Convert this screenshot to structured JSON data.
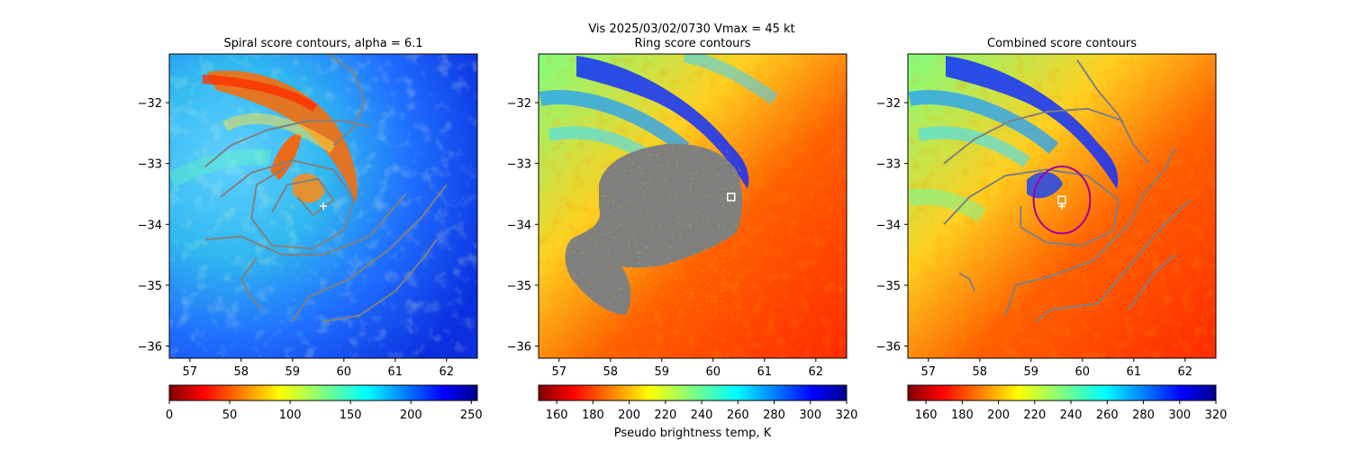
{
  "figure": {
    "suptitle": "Vis  2025/03/02/0730    Vmax = 45 kt",
    "colorbar_label": "Pseudo brightness temp, K"
  },
  "chart_data": [
    {
      "type": "heatmap",
      "title": "Spiral score contours, alpha =  6.1",
      "xlim": [
        56.6,
        62.6
      ],
      "ylim": [
        -36.2,
        -31.2
      ],
      "x_ticks": [
        "57",
        "58",
        "59",
        "60",
        "61",
        "62"
      ],
      "y_ticks": [
        "−32",
        "−33",
        "−34",
        "−35",
        "−36"
      ],
      "field": "cold",
      "center_marker": {
        "lon": 59.6,
        "lat": -33.7
      },
      "contours": [
        [
          [
            57.3,
            -33.05
          ],
          [
            57.8,
            -32.7
          ],
          [
            58.5,
            -32.45
          ],
          [
            59.3,
            -32.3
          ],
          [
            60.0,
            -32.3
          ],
          [
            60.5,
            -32.4
          ]
        ],
        [
          [
            57.6,
            -33.55
          ],
          [
            58.2,
            -33.15
          ],
          [
            59.0,
            -32.95
          ],
          [
            59.8,
            -33.1
          ],
          [
            60.2,
            -33.6
          ],
          [
            60.0,
            -34.1
          ],
          [
            59.4,
            -34.4
          ],
          [
            58.6,
            -34.35
          ],
          [
            58.2,
            -33.9
          ],
          [
            58.3,
            -33.35
          ],
          [
            58.9,
            -33.05
          ]
        ],
        [
          [
            58.6,
            -33.8
          ],
          [
            58.9,
            -33.35
          ],
          [
            59.5,
            -33.25
          ],
          [
            59.8,
            -33.6
          ],
          [
            59.4,
            -33.85
          ],
          [
            59.1,
            -33.55
          ]
        ],
        [
          [
            57.3,
            -34.25
          ],
          [
            58.0,
            -34.2
          ],
          [
            58.8,
            -34.5
          ],
          [
            59.6,
            -34.5
          ],
          [
            60.5,
            -34.2
          ],
          [
            61.2,
            -33.5
          ]
        ],
        [
          [
            58.3,
            -34.55
          ],
          [
            58.0,
            -34.9
          ],
          [
            58.2,
            -35.2
          ],
          [
            58.4,
            -35.4
          ]
        ],
        [
          [
            59.0,
            -35.6
          ],
          [
            59.3,
            -35.2
          ],
          [
            60.1,
            -34.9
          ],
          [
            60.9,
            -34.4
          ],
          [
            61.5,
            -33.9
          ],
          [
            62.0,
            -33.35
          ]
        ],
        [
          [
            59.6,
            -35.6
          ],
          [
            60.3,
            -35.5
          ],
          [
            61.0,
            -35.1
          ],
          [
            61.6,
            -34.5
          ],
          [
            61.8,
            -34.25
          ]
        ],
        [
          [
            59.7,
            -31.2
          ],
          [
            60.2,
            -31.5
          ],
          [
            60.4,
            -32.0
          ],
          [
            60.2,
            -32.4
          ],
          [
            59.8,
            -32.7
          ]
        ]
      ]
    },
    {
      "type": "heatmap",
      "title": "Ring score contours",
      "xlim": [
        56.6,
        62.6
      ],
      "ylim": [
        -36.2,
        -31.2
      ],
      "x_ticks": [
        "57",
        "58",
        "59",
        "60",
        "61",
        "62"
      ],
      "y_ticks": [
        "−32",
        "−33",
        "−34",
        "−35",
        "−36"
      ],
      "field": "warm",
      "center_marker": {
        "lon": 60.35,
        "lat": -33.55
      },
      "masked_region": true
    },
    {
      "type": "heatmap",
      "title": "Combined score contours",
      "xlim": [
        56.6,
        62.6
      ],
      "ylim": [
        -36.2,
        -31.2
      ],
      "x_ticks": [
        "57",
        "58",
        "59",
        "60",
        "61",
        "62"
      ],
      "y_ticks": [
        "−32",
        "−33",
        "−34",
        "−35",
        "−36"
      ],
      "field": "warm",
      "center_marker": {
        "lon": 59.6,
        "lat": -33.6
      },
      "ring": {
        "lon": 59.6,
        "lat": -33.6,
        "radius_deg": 0.55
      },
      "contours": [
        [
          [
            57.3,
            -33.0
          ],
          [
            57.9,
            -32.6
          ],
          [
            58.6,
            -32.3
          ],
          [
            59.3,
            -32.15
          ],
          [
            60.1,
            -32.1
          ],
          [
            60.8,
            -32.3
          ]
        ],
        [
          [
            57.3,
            -34.0
          ],
          [
            57.8,
            -33.55
          ],
          [
            58.5,
            -33.2
          ],
          [
            59.3,
            -33.1
          ],
          [
            60.1,
            -33.2
          ],
          [
            60.7,
            -33.6
          ],
          [
            60.6,
            -34.1
          ],
          [
            60.0,
            -34.35
          ],
          [
            59.3,
            -34.3
          ],
          [
            58.8,
            -34.05
          ],
          [
            58.8,
            -33.7
          ]
        ],
        [
          [
            58.5,
            -35.5
          ],
          [
            58.7,
            -35.0
          ],
          [
            59.4,
            -34.85
          ],
          [
            60.2,
            -34.6
          ],
          [
            60.9,
            -34.0
          ],
          [
            61.2,
            -33.5
          ],
          [
            61.6,
            -33.1
          ],
          [
            61.8,
            -32.75
          ]
        ],
        [
          [
            59.1,
            -35.6
          ],
          [
            59.4,
            -35.4
          ],
          [
            60.3,
            -35.3
          ],
          [
            61.0,
            -34.6
          ],
          [
            61.6,
            -34.0
          ],
          [
            62.1,
            -33.6
          ]
        ],
        [
          [
            60.9,
            -35.4
          ],
          [
            61.4,
            -34.8
          ],
          [
            61.8,
            -34.5
          ]
        ],
        [
          [
            59.9,
            -31.3
          ],
          [
            60.3,
            -31.8
          ],
          [
            60.7,
            -32.2
          ],
          [
            61.0,
            -32.7
          ],
          [
            61.3,
            -33.0
          ]
        ],
        [
          [
            57.6,
            -34.8
          ],
          [
            57.8,
            -34.9
          ],
          [
            57.9,
            -35.1
          ]
        ]
      ]
    }
  ],
  "colorbars": [
    {
      "cmap": "jet_r",
      "ticks": [
        "0",
        "50",
        "100",
        "150",
        "200",
        "250"
      ],
      "min": 0,
      "max": 255,
      "values": [
        0,
        50,
        100,
        150,
        200,
        250
      ]
    },
    {
      "cmap": "jet_r",
      "ticks": [
        "160",
        "180",
        "200",
        "220",
        "240",
        "260",
        "280",
        "300",
        "320"
      ],
      "min": 150,
      "max": 320,
      "values": [
        160,
        180,
        200,
        220,
        240,
        260,
        280,
        300,
        320
      ]
    },
    {
      "cmap": "jet_r",
      "ticks": [
        "160",
        "180",
        "200",
        "220",
        "240",
        "260",
        "280",
        "300",
        "320"
      ],
      "min": 150,
      "max": 320,
      "values": [
        160,
        180,
        200,
        220,
        240,
        260,
        280,
        300,
        320
      ]
    }
  ],
  "colors": {
    "contour": "#808080",
    "ring": "#a000a0",
    "marker": "#ffffff",
    "mask": "#7f7f7f"
  }
}
